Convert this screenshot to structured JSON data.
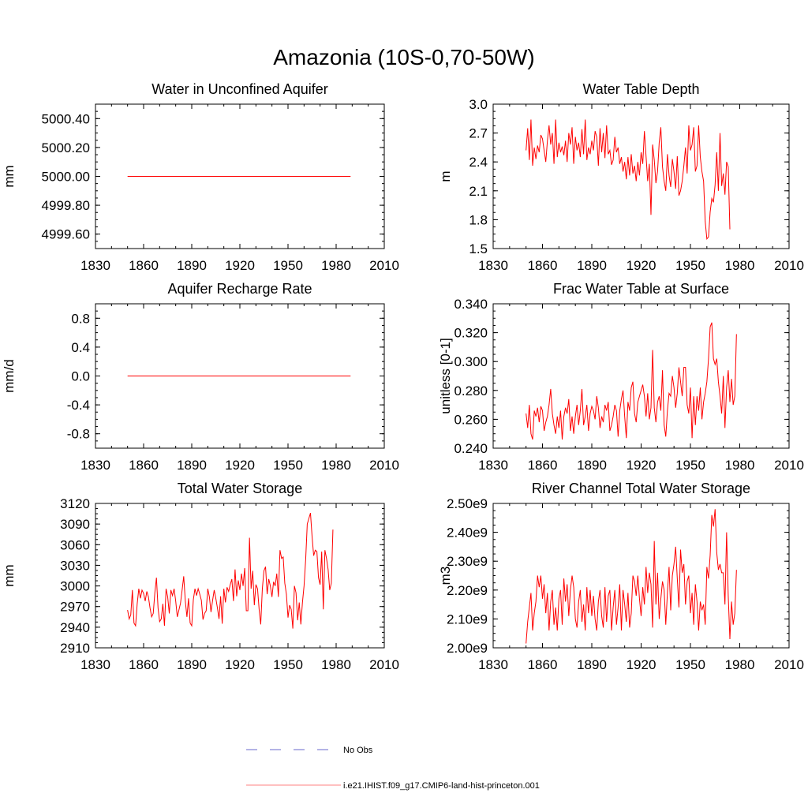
{
  "figure_title": "Amazonia (10S-0,70-50W)",
  "chart_data": [
    {
      "type": "line",
      "title": "Water in Unconfined Aquifer",
      "ylabel": "mm",
      "xlim": [
        1830,
        2010
      ],
      "ylim": [
        4999.5,
        5000.5
      ],
      "xticks": [
        1830,
        1860,
        1890,
        1920,
        1950,
        1980,
        2010
      ],
      "yticks": [
        4999.6,
        4999.8,
        5000.0,
        5000.2,
        5000.4
      ],
      "ytick_labels": [
        "4999.60",
        "4999.80",
        "5000.00",
        "5000.20",
        "5000.40"
      ],
      "x": [
        1850,
        1989
      ],
      "series": [
        {
          "name": "i.e21.IHIST.f09_g17.CMIP6-land-hist-princeton.001",
          "color": "#ff0000",
          "values": [
            5000.0,
            5000.0
          ]
        }
      ]
    },
    {
      "type": "line",
      "title": "Water Table Depth",
      "ylabel": "m",
      "xlim": [
        1830,
        2010
      ],
      "ylim": [
        1.5,
        3.0
      ],
      "xticks": [
        1830,
        1860,
        1890,
        1920,
        1950,
        1980,
        2010
      ],
      "yticks": [
        1.5,
        1.8,
        2.1,
        2.4,
        2.7,
        3.0
      ],
      "ytick_labels": [
        "1.5",
        "1.8",
        "2.1",
        "2.4",
        "2.7",
        "3.0"
      ],
      "x_start": 1850,
      "x_step": 1,
      "series": [
        {
          "name": "i.e21.IHIST.f09_g17.CMIP6-land-hist-princeton.001",
          "color": "#ff0000",
          "values": [
            2.52,
            2.75,
            2.42,
            2.84,
            2.36,
            2.55,
            2.43,
            2.57,
            2.5,
            2.68,
            2.64,
            2.52,
            2.4,
            2.62,
            2.78,
            2.58,
            2.7,
            2.38,
            2.84,
            2.45,
            2.6,
            2.5,
            2.56,
            2.47,
            2.62,
            2.4,
            2.7,
            2.58,
            2.76,
            2.38,
            2.66,
            2.52,
            2.6,
            2.45,
            2.74,
            2.48,
            2.84,
            2.42,
            2.55,
            2.48,
            2.62,
            2.52,
            2.72,
            2.66,
            2.36,
            2.75,
            2.5,
            2.7,
            2.44,
            2.78,
            2.48,
            2.52,
            2.37,
            2.42,
            2.66,
            2.5,
            2.55,
            2.38,
            2.45,
            2.3,
            2.4,
            2.22,
            2.45,
            2.26,
            2.48,
            2.28,
            2.36,
            2.2,
            2.4,
            2.26,
            2.5,
            2.38,
            2.72,
            2.46,
            2.2,
            2.38,
            1.85,
            2.58,
            2.42,
            2.18,
            2.3,
            2.6,
            2.76,
            2.35,
            2.2,
            2.1,
            2.48,
            2.26,
            2.14,
            2.43,
            2.3,
            2.12,
            2.46,
            2.05,
            2.1,
            2.2,
            2.36,
            2.55,
            2.28,
            2.78,
            2.52,
            2.58,
            2.76,
            2.3,
            2.36,
            2.78,
            2.45,
            2.3,
            2.2,
            1.78,
            1.6,
            1.62,
            1.88,
            2.02,
            1.98,
            2.16,
            2.5,
            2.1,
            2.7,
            2.15,
            2.28,
            2.06,
            2.4,
            2.35,
            1.7
          ]
        }
      ]
    },
    {
      "type": "line",
      "title": "Aquifer Recharge Rate",
      "ylabel": "mm/d",
      "xlim": [
        1830,
        2010
      ],
      "ylim": [
        -1.0,
        1.0
      ],
      "xticks": [
        1830,
        1860,
        1890,
        1920,
        1950,
        1980,
        2010
      ],
      "yticks": [
        -0.8,
        -0.4,
        0.0,
        0.4,
        0.8
      ],
      "ytick_labels": [
        "-0.8",
        "-0.4",
        "0.0",
        "0.4",
        "0.8"
      ],
      "x": [
        1850,
        1989
      ],
      "series": [
        {
          "name": "i.e21.IHIST.f09_g17.CMIP6-land-hist-princeton.001",
          "color": "#ff0000",
          "values": [
            0.0,
            0.0
          ]
        }
      ]
    },
    {
      "type": "line",
      "title": "Frac Water Table at Surface",
      "ylabel": "unitless [0-1]",
      "xlim": [
        1830,
        2010
      ],
      "ylim": [
        0.24,
        0.34
      ],
      "xticks": [
        1830,
        1860,
        1890,
        1920,
        1950,
        1980,
        2010
      ],
      "yticks": [
        0.24,
        0.26,
        0.28,
        0.3,
        0.32,
        0.34
      ],
      "ytick_labels": [
        "0.240",
        "0.260",
        "0.280",
        "0.300",
        "0.320",
        "0.340"
      ],
      "x_start": 1850,
      "x_step": 1,
      "series": [
        {
          "name": "i.e21.IHIST.f09_g17.CMIP6-land-hist-princeton.001",
          "color": "#ff0000",
          "values": [
            0.264,
            0.254,
            0.27,
            0.25,
            0.246,
            0.266,
            0.262,
            0.268,
            0.258,
            0.269,
            0.266,
            0.252,
            0.258,
            0.262,
            0.27,
            0.281,
            0.264,
            0.256,
            0.25,
            0.262,
            0.254,
            0.266,
            0.246,
            0.262,
            0.268,
            0.264,
            0.274,
            0.252,
            0.262,
            0.25,
            0.262,
            0.27,
            0.256,
            0.266,
            0.281,
            0.256,
            0.262,
            0.27,
            0.252,
            0.264,
            0.269,
            0.266,
            0.26,
            0.276,
            0.268,
            0.254,
            0.262,
            0.258,
            0.27,
            0.266,
            0.272,
            0.252,
            0.256,
            0.262,
            0.27,
            0.266,
            0.248,
            0.266,
            0.274,
            0.28,
            0.262,
            0.247,
            0.272,
            0.266,
            0.282,
            0.286,
            0.264,
            0.258,
            0.272,
            0.276,
            0.28,
            0.284,
            0.276,
            0.262,
            0.278,
            0.26,
            0.268,
            0.308,
            0.268,
            0.258,
            0.272,
            0.276,
            0.266,
            0.294,
            0.256,
            0.248,
            0.266,
            0.278,
            0.276,
            0.29,
            0.282,
            0.268,
            0.278,
            0.296,
            0.286,
            0.276,
            0.296,
            0.296,
            0.27,
            0.264,
            0.282,
            0.247,
            0.276,
            0.256,
            0.276,
            0.266,
            0.282,
            0.26,
            0.272,
            0.278,
            0.286,
            0.302,
            0.324,
            0.327,
            0.302,
            0.298,
            0.302,
            0.286,
            0.276,
            0.264,
            0.29,
            0.254,
            0.282,
            0.294,
            0.272,
            0.288,
            0.27,
            0.276,
            0.319
          ]
        }
      ]
    },
    {
      "type": "line",
      "title": "Total Water Storage",
      "ylabel": "mm",
      "xlim": [
        1830,
        2010
      ],
      "ylim": [
        2910,
        3120
      ],
      "xticks": [
        1830,
        1860,
        1890,
        1920,
        1950,
        1980,
        2010
      ],
      "yticks": [
        2910,
        2940,
        2970,
        3000,
        3030,
        3060,
        3090,
        3120
      ],
      "ytick_labels": [
        "2910",
        "2940",
        "2970",
        "3000",
        "3030",
        "3060",
        "3090",
        "3120"
      ],
      "x_start": 1850,
      "x_step": 1,
      "series": [
        {
          "name": "i.e21.IHIST.f09_g17.CMIP6-land-hist-princeton.001",
          "color": "#ff0000",
          "values": [
            2965,
            2952,
            2958,
            2994,
            2946,
            2942,
            2974,
            2996,
            2982,
            2994,
            2989,
            2978,
            2992,
            2984,
            2968,
            2955,
            2960,
            2990,
            3012,
            2968,
            2948,
            2952,
            2974,
            2942,
            2996,
            2984,
            2960,
            2994,
            2986,
            2996,
            2978,
            2955,
            2965,
            2975,
            2994,
            3014,
            2978,
            2955,
            2982,
            2946,
            2942,
            2980,
            2996,
            2986,
            2996,
            2988,
            2979,
            2951,
            2960,
            2964,
            2996,
            2984,
            2962,
            2979,
            2994,
            2982,
            2968,
            2952,
            2985,
            2945,
            2996,
            2976,
            2998,
            2992,
            3002,
            3010,
            2978,
            3024,
            2985,
            3008,
            2994,
            3018,
            3000,
            3026,
            2964,
            2964,
            3070,
            2996,
            3022,
            2972,
            3002,
            2996,
            2966,
            2944,
            2996,
            3022,
            3028,
            2988,
            3010,
            3000,
            2984,
            3006,
            3000,
            3018,
            2984,
            3052,
            3040,
            3042,
            3004,
            2988,
            2954,
            2972,
            2966,
            2938,
            3000,
            2990,
            2950,
            2976,
            2944,
            2976,
            3000,
            3038,
            3090,
            3098,
            3106,
            3072,
            3044,
            3052,
            3050,
            3012,
            3002,
            3050,
            2966,
            3052,
            3040,
            3024,
            2994,
            3004,
            3082
          ]
        }
      ]
    },
    {
      "type": "line",
      "title": "River Channel Total Water Storage",
      "ylabel": "m3",
      "xlim": [
        1830,
        2010
      ],
      "ylim": [
        2000000000,
        2500000000
      ],
      "xticks": [
        1830,
        1860,
        1890,
        1920,
        1950,
        1980,
        2010
      ],
      "yticks": [
        2000000000,
        2100000000,
        2200000000,
        2300000000,
        2400000000,
        2500000000
      ],
      "ytick_labels": [
        "2.00e9",
        "2.10e9",
        "2.20e9",
        "2.30e9",
        "2.40e9",
        "2.50e9"
      ],
      "x_start": 1850,
      "x_step": 1,
      "series": [
        {
          "name": "i.e21.IHIST.f09_g17.CMIP6-land-hist-princeton.001",
          "color": "#ff0000",
          "values": [
            2015000000,
            2090000000,
            2140000000,
            2190000000,
            2060000000,
            2120000000,
            2160000000,
            2250000000,
            2210000000,
            2250000000,
            2170000000,
            2220000000,
            2120000000,
            2190000000,
            2060000000,
            2160000000,
            2200000000,
            2080000000,
            2140000000,
            2060000000,
            2170000000,
            2200000000,
            2080000000,
            2240000000,
            2160000000,
            2220000000,
            2110000000,
            2200000000,
            2250000000,
            2210000000,
            2100000000,
            2070000000,
            2160000000,
            2200000000,
            2090000000,
            2150000000,
            2060000000,
            2210000000,
            2120000000,
            2200000000,
            2110000000,
            2180000000,
            2100000000,
            2060000000,
            2160000000,
            2200000000,
            2110000000,
            2070000000,
            2210000000,
            2090000000,
            2180000000,
            2200000000,
            2060000000,
            2140000000,
            2200000000,
            2080000000,
            2140000000,
            2220000000,
            2060000000,
            2200000000,
            2150000000,
            2090000000,
            2190000000,
            2070000000,
            2120000000,
            2250000000,
            2230000000,
            2180000000,
            2250000000,
            2170000000,
            2110000000,
            2210000000,
            2150000000,
            2280000000,
            2190000000,
            2260000000,
            2220000000,
            2070000000,
            2370000000,
            2150000000,
            2260000000,
            2100000000,
            2170000000,
            2230000000,
            2200000000,
            2080000000,
            2190000000,
            2280000000,
            2130000000,
            2250000000,
            2290000000,
            2350000000,
            2240000000,
            2140000000,
            2340000000,
            2260000000,
            2290000000,
            2150000000,
            2230000000,
            2250000000,
            2120000000,
            2190000000,
            2080000000,
            2220000000,
            2160000000,
            2060000000,
            2160000000,
            2130000000,
            2150000000,
            2080000000,
            2280000000,
            2240000000,
            2320000000,
            2460000000,
            2420000000,
            2480000000,
            2330000000,
            2270000000,
            2290000000,
            2260000000,
            2260000000,
            2150000000,
            2400000000,
            2180000000,
            2030000000,
            2160000000,
            2080000000,
            2120000000,
            2270000000
          ]
        }
      ]
    }
  ],
  "legend": [
    {
      "label": "No Obs",
      "color": "#6a6acd",
      "dash": true
    },
    {
      "label": "i.e21.IHIST.f09_g17.CMIP6-land-hist-princeton.001",
      "color": "#ff8080",
      "dash": false
    }
  ]
}
